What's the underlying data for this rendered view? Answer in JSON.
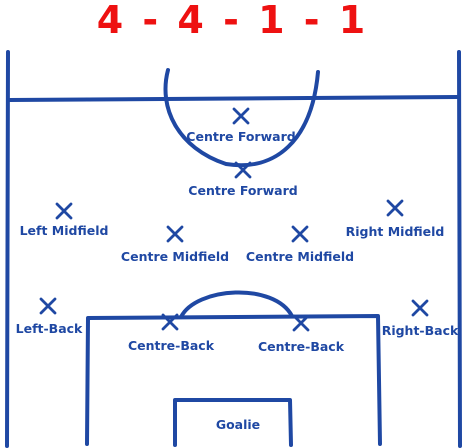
{
  "title": "4 - 4 - 1 - 1",
  "colors": {
    "title": "#ee1111",
    "lines": "#1f48a3",
    "labels": "#1f48a3"
  },
  "players": [
    {
      "id": "cf-1",
      "label": "Centre Forward"
    },
    {
      "id": "cf-2",
      "label": "Centre Forward"
    },
    {
      "id": "lm",
      "label": "Left Midfield"
    },
    {
      "id": "rm",
      "label": "Right Midfield"
    },
    {
      "id": "cm-l",
      "label": "Centre Midfield"
    },
    {
      "id": "cm-r",
      "label": "Centre Midfield"
    },
    {
      "id": "lb",
      "label": "Left-Back"
    },
    {
      "id": "rb",
      "label": "Right-Back"
    },
    {
      "id": "cb-l",
      "label": "Centre-Back"
    },
    {
      "id": "cb-r",
      "label": "Centre-Back"
    },
    {
      "id": "gk",
      "label": "Goalie"
    }
  ]
}
